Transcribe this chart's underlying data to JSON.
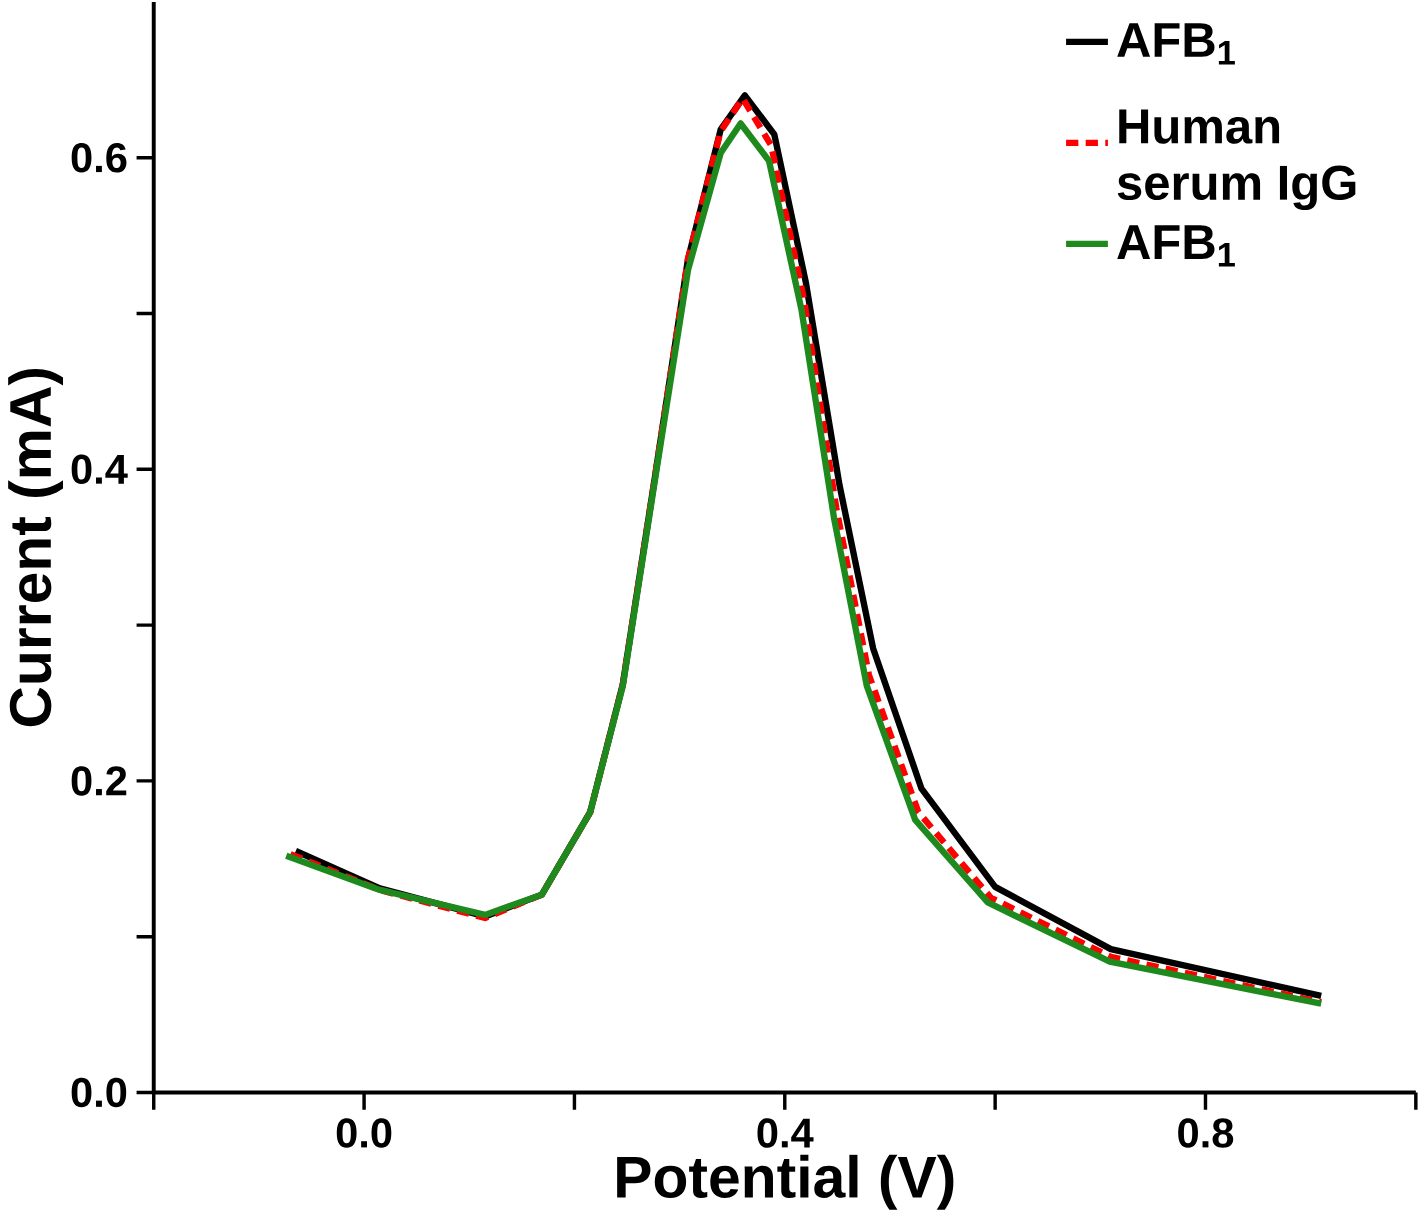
{
  "chart_data": {
    "type": "line",
    "xlabel": "Potential (V)",
    "ylabel": "Current (mA)",
    "xlim": [
      -0.2,
      1.0
    ],
    "ylim": [
      0,
      0.7
    ],
    "xticks": [
      {
        "value": -0.2,
        "label": null
      },
      {
        "value": 0,
        "label": "0.0"
      },
      {
        "value": 0.2,
        "label": null
      },
      0.4,
      {
        "value": 0.6,
        "label": null
      },
      0.8,
      {
        "value": 1.0,
        "label": null
      }
    ],
    "yticks": [
      {
        "value": 0,
        "label": "0.0"
      },
      {
        "value": 0.1,
        "label": null
      },
      0.2,
      {
        "value": 0.3,
        "label": null
      },
      0.4,
      {
        "value": 0.5,
        "label": null
      },
      0.6
    ],
    "legend": "top right",
    "grid": false,
    "marker": "none",
    "series": [
      {
        "name": "AFB$_{1}$",
        "color": "#000000",
        "line_style": "solid",
        "x": [
          -0.065,
          0.015,
          0.115,
          0.169,
          0.215,
          0.246,
          0.277,
          0.308,
          0.339,
          0.362,
          0.39,
          0.42,
          0.452,
          0.484,
          0.53,
          0.6,
          0.71,
          0.91
        ],
        "values": [
          0.155,
          0.131,
          0.113,
          0.127,
          0.18,
          0.262,
          0.397,
          0.535,
          0.618,
          0.64,
          0.615,
          0.52,
          0.39,
          0.285,
          0.195,
          0.132,
          0.092,
          0.062
        ]
      },
      {
        "name": "Human serum IgG",
        "color": "#ff0000",
        "line_style": "dashed",
        "x": [
          -0.07,
          0.015,
          0.115,
          0.169,
          0.215,
          0.246,
          0.277,
          0.308,
          0.339,
          0.36,
          0.387,
          0.418,
          0.449,
          0.48,
          0.527,
          0.596,
          0.71,
          0.91
        ],
        "values": [
          0.153,
          0.13,
          0.112,
          0.127,
          0.18,
          0.262,
          0.397,
          0.535,
          0.617,
          0.638,
          0.608,
          0.51,
          0.375,
          0.268,
          0.18,
          0.125,
          0.087,
          0.058
        ]
      },
      {
        "name": "AFB$_{1}$",
        "color": "#1e8a1e",
        "line_style": "solid",
        "x": [
          -0.074,
          0.015,
          0.115,
          0.169,
          0.215,
          0.246,
          0.277,
          0.308,
          0.339,
          0.358,
          0.385,
          0.416,
          0.447,
          0.478,
          0.524,
          0.593,
          0.709,
          0.91
        ],
        "values": [
          0.152,
          0.13,
          0.114,
          0.127,
          0.18,
          0.261,
          0.395,
          0.528,
          0.603,
          0.622,
          0.598,
          0.502,
          0.368,
          0.261,
          0.175,
          0.122,
          0.084,
          0.057
        ]
      }
    ]
  }
}
